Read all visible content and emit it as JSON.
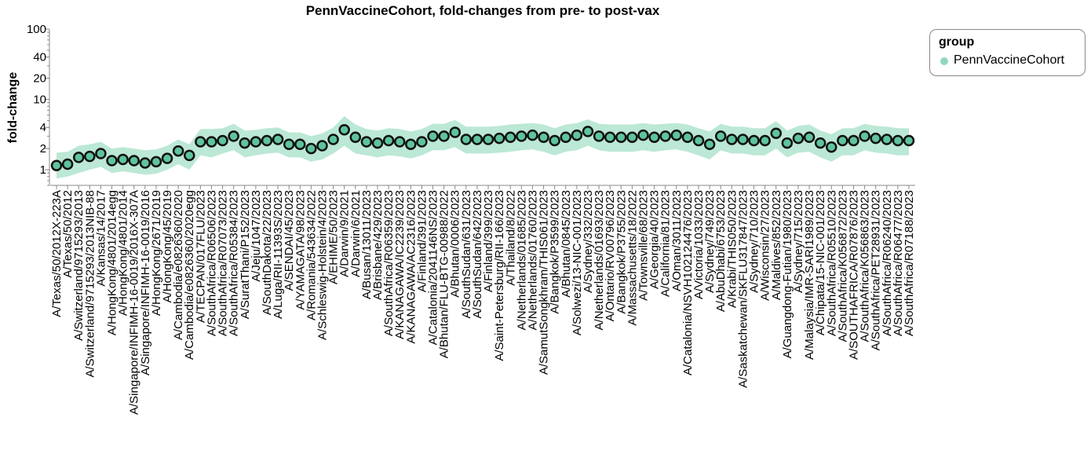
{
  "chart_data": {
    "type": "scatter",
    "title": "PennVaccineCohort, fold-changes from pre- to post-vax",
    "xlabel": "",
    "ylabel": "fold-change",
    "y_scale": "log",
    "ylim": [
      0.6,
      100
    ],
    "y_ticks": [
      1,
      2,
      4,
      10,
      20,
      40,
      100
    ],
    "grid": false,
    "legend_position": "top-right",
    "legend_title": "group",
    "colors": {
      "band": "#8fd9bb",
      "point_fill": "#5fc49e",
      "point_stroke": "#111111"
    },
    "categories": [
      "A/Texas/50/2012X-223A",
      "A/Texas/50/2012",
      "A/Switzerland/9715293/2013",
      "A/Switzerland/9715293/2013NIB-88",
      "A/Kansas/14/2017",
      "A/HongKong/4801/2014egg",
      "A/HongKong/4801/2014",
      "A/Singapore/INFIMH-16-0019/2016X-307A",
      "A/Singapore/INFIMH-16-0019/2016",
      "A/HongKong/2671/2019",
      "A/HongKong/45/2019",
      "A/Cambodia/e0826360/2020",
      "A/Cambodia/e0826360/2020egg",
      "A/TECPAN/017FLU/2023",
      "A/SouthAfrica/R06506/2023",
      "A/SouthAfrica/R07073/2023",
      "A/SouthAfrica/R05384/2023",
      "A/SuratThani/P152/2023",
      "A/Jeju/1047/2023",
      "A/SouthDakota/22/2023",
      "A/Luga/RII-11393S/2023",
      "A/SENDAI/45/2023",
      "A/YAMAGATA/98/2023",
      "A/Romania/543634/2022",
      "A/Schleswig-Holstein/4/2023",
      "A/EHIME/50/2023",
      "A/Darwin/9/2021",
      "A/Darwin/6/2021",
      "A/Busan/13011/2023",
      "A/Brisbane/429/2023",
      "A/SouthAfrica/R06359/2023",
      "A/KANAGAWA/IC2239/2023",
      "A/KANAGAWA/AC2316/2023",
      "A/Finland/391/2023",
      "A/Catalonia/2041146NS/2023",
      "A/Bhutan/FLU-BTG-00988/2022",
      "A/Bhutan/0006/2023",
      "A/SouthSudan/631/2023",
      "A/SouthSudan/642/2023",
      "A/Finland/399/2023",
      "A/Saint-Petersburg/RII-166/2023",
      "A/Thailand/8/2022",
      "A/Netherlands/01685/2023",
      "A/Netherlands/01760/2023",
      "A/SamutSongkhram/THIS061/2023",
      "A/Bangkok/P3599/2023",
      "A/Bhutan/0845/2023",
      "A/Solwezi/13-NIC-001/2023",
      "A/Sydney/332/2023",
      "A/Netherlands/01693/2023",
      "A/Ontario/RV00796/2023",
      "A/Bangkok/P3755/2023",
      "A/Massachusetts/18/2022",
      "A/Townsville/68/2023",
      "A/Georgia/40/2023",
      "A/California/81/2023",
      "A/Oman/3011/2023",
      "A/Catalonia/NSVH102124476/2023",
      "A/Victoria/1033/2023",
      "A/Sydney/749/2023",
      "A/AbuDhabi/6753/2023",
      "A/Krabi/THIS050/2023",
      "A/Saskatchewan/SKFLU317847/2023",
      "A/Sydney/710/2023",
      "A/Wisconsin/27/2023",
      "A/Maldives/852/2023",
      "A/Guangdong-Futian/1980/2023",
      "A/Sydney/715/2023",
      "A/Malaysia/IMR-SARI1989/2023",
      "A/Chipata/15-NIC-001/2023",
      "A/SouthAfrica/R05510/2023",
      "A/SouthAfrica/K056872/2023",
      "A/SOUTHAFRICA/R07876/2023",
      "A/SouthAfrica/K056863/2023",
      "A/SouthAfrica/PET28931/2023",
      "A/SouthAfrica/R06240/2023",
      "A/SouthAfrica/R06477/2023",
      "A/SouthAfrica/R07188/2023"
    ],
    "series": [
      {
        "name": "PennVaccineCohort",
        "values": [
          1.15,
          1.2,
          1.5,
          1.55,
          1.7,
          1.35,
          1.4,
          1.35,
          1.25,
          1.3,
          1.45,
          1.85,
          1.6,
          2.5,
          2.5,
          2.6,
          3.0,
          2.4,
          2.5,
          2.6,
          2.7,
          2.3,
          2.3,
          2.0,
          2.2,
          2.7,
          3.7,
          2.9,
          2.5,
          2.4,
          2.6,
          2.5,
          2.3,
          2.5,
          3.0,
          3.0,
          3.4,
          2.7,
          2.7,
          2.7,
          2.8,
          2.9,
          3.0,
          3.1,
          2.9,
          2.6,
          2.9,
          3.1,
          3.5,
          3.0,
          2.9,
          2.9,
          2.9,
          3.1,
          2.9,
          3.0,
          3.1,
          2.9,
          2.6,
          2.3,
          3.0,
          2.7,
          2.7,
          2.6,
          2.6,
          3.3,
          2.4,
          2.8,
          2.9,
          2.4,
          2.1,
          2.6,
          2.6,
          3.0,
          2.8,
          2.7,
          2.6,
          2.6
        ],
        "lower": [
          0.75,
          0.8,
          0.9,
          1.0,
          1.1,
          0.9,
          0.95,
          0.9,
          0.85,
          0.88,
          1.0,
          1.2,
          1.0,
          1.6,
          1.5,
          1.7,
          1.9,
          1.5,
          1.6,
          1.7,
          1.75,
          1.5,
          1.5,
          1.3,
          1.4,
          1.7,
          2.2,
          1.7,
          1.6,
          1.5,
          1.6,
          1.55,
          1.45,
          1.6,
          1.9,
          1.9,
          2.1,
          1.7,
          1.7,
          1.7,
          1.75,
          1.8,
          1.9,
          1.95,
          1.8,
          1.6,
          1.8,
          1.9,
          2.2,
          1.9,
          1.8,
          1.8,
          1.8,
          1.9,
          1.8,
          1.9,
          1.95,
          1.8,
          1.6,
          1.4,
          1.9,
          1.7,
          1.7,
          1.6,
          1.6,
          2.0,
          1.5,
          1.75,
          1.8,
          1.5,
          1.3,
          1.6,
          1.6,
          1.9,
          1.75,
          1.7,
          1.6,
          1.6
        ],
        "upper": [
          1.75,
          1.8,
          2.2,
          2.3,
          2.5,
          2.0,
          2.1,
          2.0,
          1.9,
          1.95,
          2.2,
          2.7,
          2.3,
          3.8,
          3.8,
          3.9,
          4.5,
          3.6,
          3.7,
          3.9,
          4.0,
          3.4,
          3.4,
          3.0,
          3.3,
          4.0,
          5.8,
          4.4,
          3.8,
          3.6,
          3.9,
          3.8,
          3.5,
          3.8,
          4.5,
          4.5,
          5.1,
          4.1,
          4.1,
          4.1,
          4.2,
          4.4,
          4.5,
          4.6,
          4.4,
          3.9,
          4.4,
          4.6,
          5.2,
          4.5,
          4.4,
          4.4,
          4.4,
          4.6,
          4.4,
          4.5,
          4.6,
          4.4,
          3.9,
          3.5,
          4.5,
          4.1,
          4.1,
          3.9,
          3.9,
          4.9,
          3.6,
          4.2,
          4.4,
          3.6,
          3.2,
          3.9,
          3.9,
          4.5,
          4.2,
          4.1,
          3.9,
          3.9
        ]
      }
    ]
  }
}
